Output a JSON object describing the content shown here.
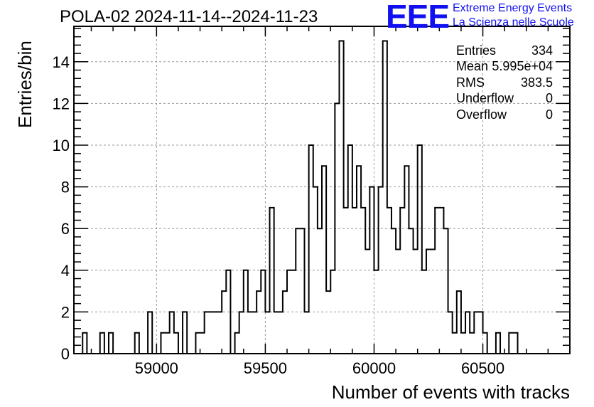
{
  "header": {
    "title": "POLA-02 2024-11-14--2024-11-23",
    "logo": "EEE",
    "logo_line1": "Extreme Energy Events",
    "logo_line2": "La Scienza nelle Scuole"
  },
  "stats": [
    {
      "label": "Entries",
      "value": "334"
    },
    {
      "label": "Mean",
      "value": "5.995e+04"
    },
    {
      "label": "RMS",
      "value": "383.5"
    },
    {
      "label": "Underflow",
      "value": "0"
    },
    {
      "label": "Overflow",
      "value": "0"
    }
  ],
  "chart_data": {
    "type": "bar",
    "title": "POLA-02 2024-11-14--2024-11-23",
    "xlabel": "Number of events with tracks",
    "ylabel": "Entries/bin",
    "xlim": [
      58620,
      60900
    ],
    "ylim": [
      0,
      15.7
    ],
    "bin_width": 20,
    "grid": true,
    "x_ticks": [
      59000,
      59500,
      60000,
      60500
    ],
    "y_ticks": [
      0,
      2,
      4,
      6,
      8,
      10,
      12,
      14
    ],
    "histogram_color": "#000000",
    "bin_starts": [
      58620,
      58640,
      58660,
      58680,
      58700,
      58720,
      58740,
      58760,
      58780,
      58800,
      58820,
      58840,
      58860,
      58880,
      58900,
      58920,
      58940,
      58960,
      58980,
      59000,
      59020,
      59040,
      59060,
      59080,
      59100,
      59120,
      59140,
      59160,
      59180,
      59200,
      59220,
      59240,
      59260,
      59280,
      59300,
      59320,
      59340,
      59360,
      59380,
      59400,
      59420,
      59440,
      59460,
      59480,
      59500,
      59520,
      59540,
      59560,
      59580,
      59600,
      59620,
      59640,
      59660,
      59680,
      59700,
      59720,
      59740,
      59760,
      59780,
      59800,
      59820,
      59840,
      59860,
      59880,
      59900,
      59920,
      59940,
      59960,
      59980,
      60000,
      60020,
      60040,
      60060,
      60080,
      60100,
      60120,
      60140,
      60160,
      60180,
      60200,
      60220,
      60240,
      60260,
      60280,
      60300,
      60320,
      60340,
      60360,
      60380,
      60400,
      60420,
      60440,
      60460,
      60480,
      60500,
      60520,
      60540,
      60560,
      60580,
      60600,
      60620,
      60640,
      60660,
      60680,
      60700,
      60720,
      60740,
      60760,
      60780,
      60800,
      60820,
      60840,
      60860,
      60880
    ],
    "values": [
      0,
      0,
      1,
      0,
      0,
      0,
      1,
      0,
      1,
      0,
      0,
      0,
      0,
      0,
      1,
      0,
      0,
      2,
      0,
      0,
      1,
      1,
      2,
      1,
      0,
      2,
      0,
      0,
      1,
      1,
      2,
      2,
      2,
      2,
      3,
      4,
      0,
      1,
      2,
      4,
      2,
      2,
      3,
      4,
      2,
      7,
      2,
      2,
      3,
      4,
      4,
      6,
      6,
      2,
      10,
      8,
      6,
      9,
      3,
      4,
      12,
      15,
      7,
      10,
      7,
      9,
      7,
      5,
      8,
      4,
      8,
      15,
      7,
      6,
      5,
      7,
      9,
      6,
      5,
      10,
      4,
      5,
      5,
      7,
      7,
      6,
      2,
      1,
      3,
      1,
      2,
      1,
      2,
      2,
      1,
      0,
      0,
      1,
      0,
      0,
      1,
      1,
      0,
      0,
      0,
      0,
      0,
      0,
      0,
      0,
      0,
      0,
      0,
      0
    ]
  }
}
